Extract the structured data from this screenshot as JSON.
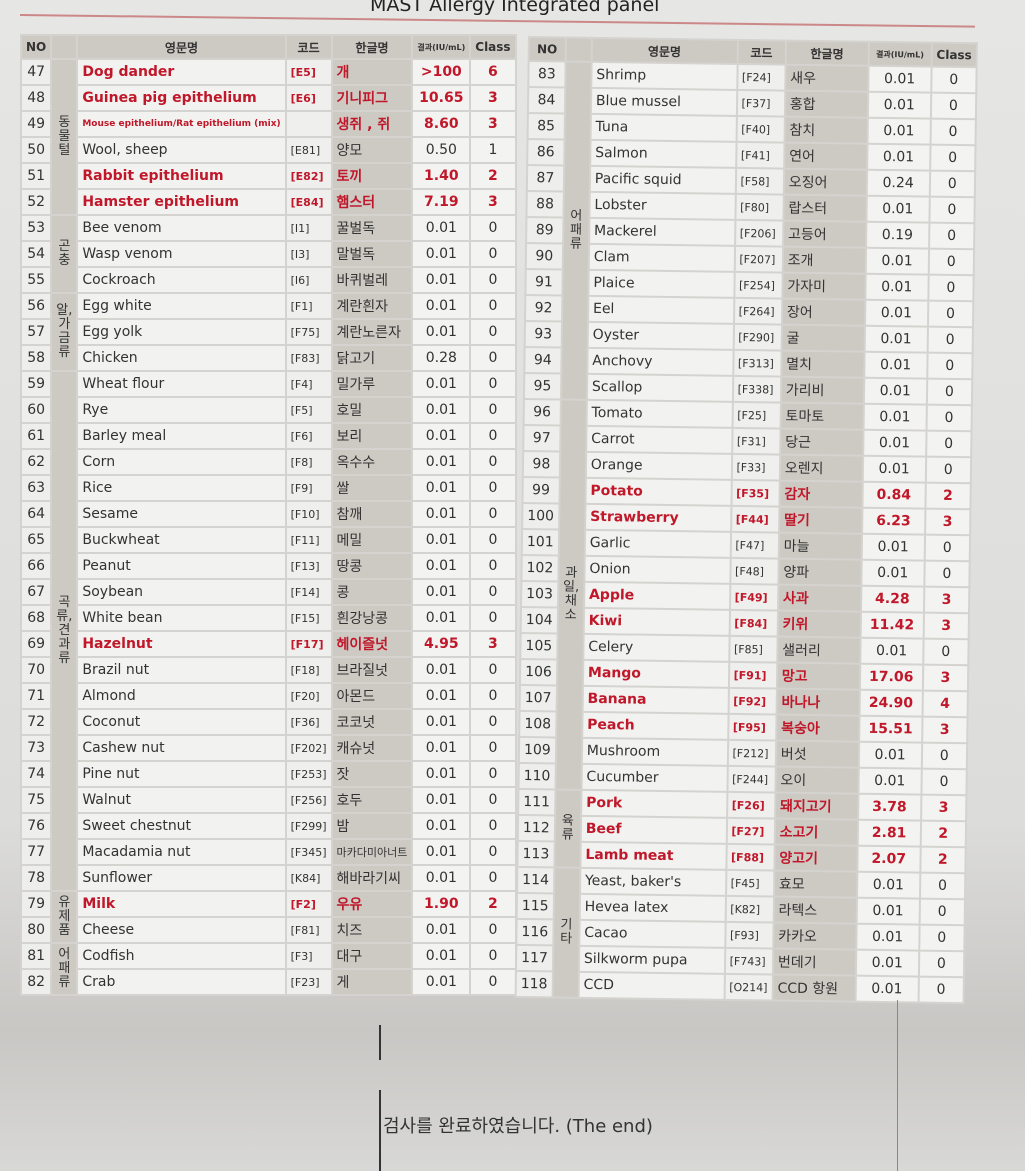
{
  "title": "MAST Allergy Integrated panel",
  "headers": {
    "no": "NO",
    "en": "영문명",
    "code": "코드",
    "ko": "한글명",
    "result": "결과(IU/mL)",
    "class": "Class"
  },
  "left": {
    "categories": [
      {
        "label": "동물털",
        "from": 47,
        "to": 52
      },
      {
        "label": "곤충",
        "from": 53,
        "to": 55
      },
      {
        "label": "알,가금류",
        "from": 56,
        "to": 58
      },
      {
        "label": "곡류,견과류",
        "from": 59,
        "to": 78
      },
      {
        "label": "유제품",
        "from": 79,
        "to": 80
      },
      {
        "label": "어패류",
        "from": 81,
        "to": 82
      }
    ],
    "rows": [
      {
        "no": "47",
        "en": "Dog dander",
        "code": "[E5]",
        "ko": "개",
        "result": ">100",
        "cls": "6",
        "hi": true
      },
      {
        "no": "48",
        "en": "Guinea pig epithelium",
        "code": "[E6]",
        "ko": "기니피그",
        "result": "10.65",
        "cls": "3",
        "hi": true
      },
      {
        "no": "49",
        "en": "Mouse epithelium/Rat epithelium (mix)",
        "code": "",
        "ko": "생쥐 , 쥐",
        "result": "8.60",
        "cls": "3",
        "hi": true
      },
      {
        "no": "50",
        "en": "Wool, sheep",
        "code": "[E81]",
        "ko": "양모",
        "result": "0.50",
        "cls": "1"
      },
      {
        "no": "51",
        "en": "Rabbit epithelium",
        "code": "[E82]",
        "ko": "토끼",
        "result": "1.40",
        "cls": "2",
        "hi": true
      },
      {
        "no": "52",
        "en": "Hamster epithelium",
        "code": "[E84]",
        "ko": "햄스터",
        "result": "7.19",
        "cls": "3",
        "hi": true
      },
      {
        "no": "53",
        "en": "Bee venom",
        "code": "[I1]",
        "ko": "꿀벌독",
        "result": "0.01",
        "cls": "0"
      },
      {
        "no": "54",
        "en": "Wasp venom",
        "code": "[I3]",
        "ko": "말벌독",
        "result": "0.01",
        "cls": "0"
      },
      {
        "no": "55",
        "en": "Cockroach",
        "code": "[I6]",
        "ko": "바퀴벌레",
        "result": "0.01",
        "cls": "0"
      },
      {
        "no": "56",
        "en": "Egg white",
        "code": "[F1]",
        "ko": "계란흰자",
        "result": "0.01",
        "cls": "0"
      },
      {
        "no": "57",
        "en": "Egg yolk",
        "code": "[F75]",
        "ko": "계란노른자",
        "result": "0.01",
        "cls": "0"
      },
      {
        "no": "58",
        "en": "Chicken",
        "code": "[F83]",
        "ko": "닭고기",
        "result": "0.28",
        "cls": "0"
      },
      {
        "no": "59",
        "en": "Wheat flour",
        "code": "[F4]",
        "ko": "밀가루",
        "result": "0.01",
        "cls": "0"
      },
      {
        "no": "60",
        "en": "Rye",
        "code": "[F5]",
        "ko": "호밀",
        "result": "0.01",
        "cls": "0"
      },
      {
        "no": "61",
        "en": "Barley meal",
        "code": "[F6]",
        "ko": "보리",
        "result": "0.01",
        "cls": "0"
      },
      {
        "no": "62",
        "en": "Corn",
        "code": "[F8]",
        "ko": "옥수수",
        "result": "0.01",
        "cls": "0"
      },
      {
        "no": "63",
        "en": "Rice",
        "code": "[F9]",
        "ko": "쌀",
        "result": "0.01",
        "cls": "0"
      },
      {
        "no": "64",
        "en": "Sesame",
        "code": "[F10]",
        "ko": "참깨",
        "result": "0.01",
        "cls": "0"
      },
      {
        "no": "65",
        "en": "Buckwheat",
        "code": "[F11]",
        "ko": "메밀",
        "result": "0.01",
        "cls": "0"
      },
      {
        "no": "66",
        "en": "Peanut",
        "code": "[F13]",
        "ko": "땅콩",
        "result": "0.01",
        "cls": "0"
      },
      {
        "no": "67",
        "en": "Soybean",
        "code": "[F14]",
        "ko": "콩",
        "result": "0.01",
        "cls": "0"
      },
      {
        "no": "68",
        "en": "White bean",
        "code": "[F15]",
        "ko": "흰강낭콩",
        "result": "0.01",
        "cls": "0"
      },
      {
        "no": "69",
        "en": "Hazelnut",
        "code": "[F17]",
        "ko": "헤이즐넛",
        "result": "4.95",
        "cls": "3",
        "hi": true
      },
      {
        "no": "70",
        "en": "Brazil nut",
        "code": "[F18]",
        "ko": "브라질넛",
        "result": "0.01",
        "cls": "0"
      },
      {
        "no": "71",
        "en": "Almond",
        "code": "[F20]",
        "ko": "아몬드",
        "result": "0.01",
        "cls": "0"
      },
      {
        "no": "72",
        "en": "Coconut",
        "code": "[F36]",
        "ko": "코코넛",
        "result": "0.01",
        "cls": "0"
      },
      {
        "no": "73",
        "en": "Cashew nut",
        "code": "[F202]",
        "ko": "캐슈넛",
        "result": "0.01",
        "cls": "0"
      },
      {
        "no": "74",
        "en": "Pine nut",
        "code": "[F253]",
        "ko": "잣",
        "result": "0.01",
        "cls": "0"
      },
      {
        "no": "75",
        "en": "Walnut",
        "code": "[F256]",
        "ko": "호두",
        "result": "0.01",
        "cls": "0"
      },
      {
        "no": "76",
        "en": "Sweet chestnut",
        "code": "[F299]",
        "ko": "밤",
        "result": "0.01",
        "cls": "0"
      },
      {
        "no": "77",
        "en": "Macadamia nut",
        "code": "[F345]",
        "ko": "마카다미아너트",
        "result": "0.01",
        "cls": "0"
      },
      {
        "no": "78",
        "en": "Sunflower",
        "code": "[K84]",
        "ko": "해바라기씨",
        "result": "0.01",
        "cls": "0"
      },
      {
        "no": "79",
        "en": "Milk",
        "code": "[F2]",
        "ko": "우유",
        "result": "1.90",
        "cls": "2",
        "hi": true
      },
      {
        "no": "80",
        "en": "Cheese",
        "code": "[F81]",
        "ko": "치즈",
        "result": "0.01",
        "cls": "0"
      },
      {
        "no": "81",
        "en": "Codfish",
        "code": "[F3]",
        "ko": "대구",
        "result": "0.01",
        "cls": "0"
      },
      {
        "no": "82",
        "en": "Crab",
        "code": "[F23]",
        "ko": "게",
        "result": "0.01",
        "cls": "0"
      }
    ]
  },
  "right": {
    "categories": [
      {
        "label": "어패류",
        "from": 83,
        "to": 95
      },
      {
        "label": "과일,채소",
        "from": 96,
        "to": 110
      },
      {
        "label": "육류",
        "from": 111,
        "to": 113
      },
      {
        "label": "기타",
        "from": 114,
        "to": 118
      }
    ],
    "rows": [
      {
        "no": "83",
        "en": "Shrimp",
        "code": "[F24]",
        "ko": "새우",
        "result": "0.01",
        "cls": "0"
      },
      {
        "no": "84",
        "en": "Blue mussel",
        "code": "[F37]",
        "ko": "홍합",
        "result": "0.01",
        "cls": "0"
      },
      {
        "no": "85",
        "en": "Tuna",
        "code": "[F40]",
        "ko": "참치",
        "result": "0.01",
        "cls": "0"
      },
      {
        "no": "86",
        "en": "Salmon",
        "code": "[F41]",
        "ko": "연어",
        "result": "0.01",
        "cls": "0"
      },
      {
        "no": "87",
        "en": "Pacific squid",
        "code": "[F58]",
        "ko": "오징어",
        "result": "0.24",
        "cls": "0"
      },
      {
        "no": "88",
        "en": "Lobster",
        "code": "[F80]",
        "ko": "랍스터",
        "result": "0.01",
        "cls": "0"
      },
      {
        "no": "89",
        "en": "Mackerel",
        "code": "[F206]",
        "ko": "고등어",
        "result": "0.19",
        "cls": "0"
      },
      {
        "no": "90",
        "en": "Clam",
        "code": "[F207]",
        "ko": "조개",
        "result": "0.01",
        "cls": "0"
      },
      {
        "no": "91",
        "en": "Plaice",
        "code": "[F254]",
        "ko": "가자미",
        "result": "0.01",
        "cls": "0"
      },
      {
        "no": "92",
        "en": "Eel",
        "code": "[F264]",
        "ko": "장어",
        "result": "0.01",
        "cls": "0"
      },
      {
        "no": "93",
        "en": "Oyster",
        "code": "[F290]",
        "ko": "굴",
        "result": "0.01",
        "cls": "0"
      },
      {
        "no": "94",
        "en": "Anchovy",
        "code": "[F313]",
        "ko": "멸치",
        "result": "0.01",
        "cls": "0"
      },
      {
        "no": "95",
        "en": "Scallop",
        "code": "[F338]",
        "ko": "가리비",
        "result": "0.01",
        "cls": "0"
      },
      {
        "no": "96",
        "en": "Tomato",
        "code": "[F25]",
        "ko": "토마토",
        "result": "0.01",
        "cls": "0"
      },
      {
        "no": "97",
        "en": "Carrot",
        "code": "[F31]",
        "ko": "당근",
        "result": "0.01",
        "cls": "0"
      },
      {
        "no": "98",
        "en": "Orange",
        "code": "[F33]",
        "ko": "오렌지",
        "result": "0.01",
        "cls": "0"
      },
      {
        "no": "99",
        "en": "Potato",
        "code": "[F35]",
        "ko": "감자",
        "result": "0.84",
        "cls": "2",
        "hi": true
      },
      {
        "no": "100",
        "en": "Strawberry",
        "code": "[F44]",
        "ko": "딸기",
        "result": "6.23",
        "cls": "3",
        "hi": true
      },
      {
        "no": "101",
        "en": "Garlic",
        "code": "[F47]",
        "ko": "마늘",
        "result": "0.01",
        "cls": "0"
      },
      {
        "no": "102",
        "en": "Onion",
        "code": "[F48]",
        "ko": "양파",
        "result": "0.01",
        "cls": "0"
      },
      {
        "no": "103",
        "en": "Apple",
        "code": "[F49]",
        "ko": "사과",
        "result": "4.28",
        "cls": "3",
        "hi": true
      },
      {
        "no": "104",
        "en": "Kiwi",
        "code": "[F84]",
        "ko": "키위",
        "result": "11.42",
        "cls": "3",
        "hi": true
      },
      {
        "no": "105",
        "en": "Celery",
        "code": "[F85]",
        "ko": "샐러리",
        "result": "0.01",
        "cls": "0"
      },
      {
        "no": "106",
        "en": "Mango",
        "code": "[F91]",
        "ko": "망고",
        "result": "17.06",
        "cls": "3",
        "hi": true
      },
      {
        "no": "107",
        "en": "Banana",
        "code": "[F92]",
        "ko": "바나나",
        "result": "24.90",
        "cls": "4",
        "hi": true
      },
      {
        "no": "108",
        "en": "Peach",
        "code": "[F95]",
        "ko": "복숭아",
        "result": "15.51",
        "cls": "3",
        "hi": true
      },
      {
        "no": "109",
        "en": "Mushroom",
        "code": "[F212]",
        "ko": "버섯",
        "result": "0.01",
        "cls": "0"
      },
      {
        "no": "110",
        "en": "Cucumber",
        "code": "[F244]",
        "ko": "오이",
        "result": "0.01",
        "cls": "0"
      },
      {
        "no": "111",
        "en": "Pork",
        "code": "[F26]",
        "ko": "돼지고기",
        "result": "3.78",
        "cls": "3",
        "hi": true
      },
      {
        "no": "112",
        "en": "Beef",
        "code": "[F27]",
        "ko": "소고기",
        "result": "2.81",
        "cls": "2",
        "hi": true
      },
      {
        "no": "113",
        "en": "Lamb meat",
        "code": "[F88]",
        "ko": "양고기",
        "result": "2.07",
        "cls": "2",
        "hi": true
      },
      {
        "no": "114",
        "en": "Yeast, baker's",
        "code": "[F45]",
        "ko": "효모",
        "result": "0.01",
        "cls": "0"
      },
      {
        "no": "115",
        "en": "Hevea latex",
        "code": "[K82]",
        "ko": "라텍스",
        "result": "0.01",
        "cls": "0"
      },
      {
        "no": "116",
        "en": "Cacao",
        "code": "[F93]",
        "ko": "카카오",
        "result": "0.01",
        "cls": "0"
      },
      {
        "no": "117",
        "en": "Silkworm pupa",
        "code": "[F743]",
        "ko": "번데기",
        "result": "0.01",
        "cls": "0"
      },
      {
        "no": "118",
        "en": "CCD",
        "code": "[O214]",
        "ko": "CCD 항원",
        "result": "0.01",
        "cls": "0"
      }
    ]
  },
  "footer": {
    "end_text": "검사를 완료하였습니다. (The end)"
  },
  "colors": {
    "highlight": "#c0182a",
    "header_bg": "#cdc9c3"
  }
}
